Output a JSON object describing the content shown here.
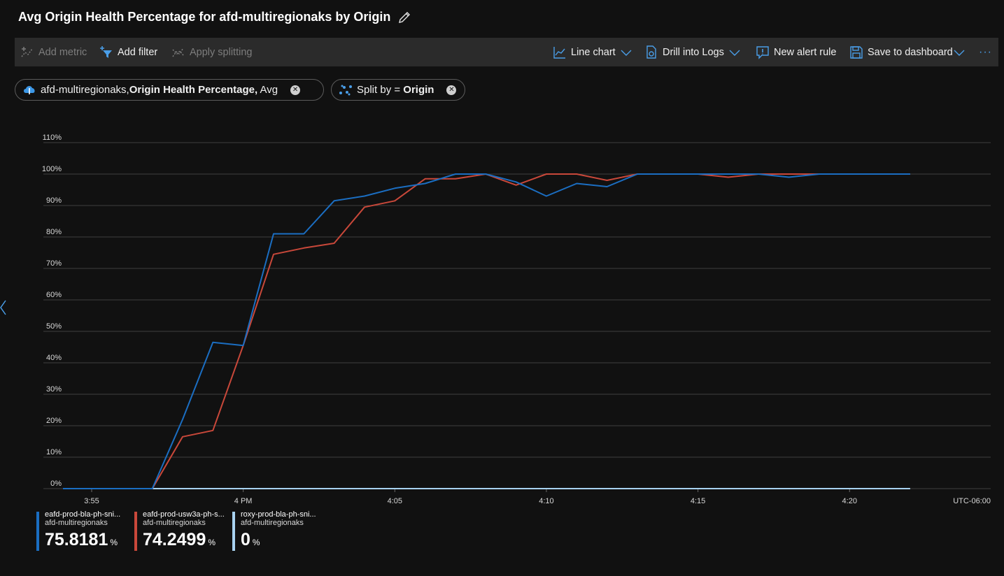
{
  "header": {
    "title": "Avg Origin Health Percentage for afd-multiregionaks by Origin",
    "edit_icon": "pencil-icon"
  },
  "toolbar": {
    "add_metric": "Add metric",
    "add_filter": "Add filter",
    "apply_splitting": "Apply splitting",
    "line_chart": "Line chart",
    "drill_logs": "Drill into Logs",
    "new_alert": "New alert rule",
    "save_dashboard": "Save to dashboard",
    "more": "···"
  },
  "pills": {
    "metric": {
      "resource": "afd-multiregionaks,",
      "metric": "Origin Health Percentage,",
      "agg": "Avg"
    },
    "split": {
      "label": "Split by = ",
      "value": "Origin"
    }
  },
  "colors": {
    "series1": "#1b6ec2",
    "series2": "#c9483a",
    "series3": "#a8d2f0",
    "grid": "#3f3f3f"
  },
  "chart_data": {
    "type": "line",
    "y_ticks": [
      "0%",
      "10%",
      "20%",
      "30%",
      "40%",
      "50%",
      "60%",
      "70%",
      "80%",
      "90%",
      "100%",
      "110%"
    ],
    "ylim": [
      0,
      110
    ],
    "x_ticks": [
      {
        "label": "3:55",
        "t": 0
      },
      {
        "label": "4 PM",
        "t": 5
      },
      {
        "label": "4:05",
        "t": 10
      },
      {
        "label": "4:10",
        "t": 15
      },
      {
        "label": "4:15",
        "t": 20
      },
      {
        "label": "4:20",
        "t": 25
      }
    ],
    "timezone": "UTC-06:00",
    "x": [
      -1,
      0,
      1,
      2,
      3,
      4,
      5,
      6,
      7,
      8,
      9,
      10,
      11,
      12,
      13,
      14,
      15,
      16,
      17,
      18,
      19,
      20,
      21,
      22,
      23,
      24,
      25,
      26,
      27
    ],
    "series": [
      {
        "name": "eafd-prod-bla-ph-sni...",
        "resource": "afd-multiregionaks",
        "value": "75.8181",
        "unit": "%",
        "values": [
          0,
          0,
          0,
          0,
          22,
          46.5,
          45.5,
          81,
          81,
          91.5,
          93,
          95.5,
          97,
          100,
          100,
          97.5,
          93,
          97,
          96,
          100,
          100,
          100,
          100,
          100,
          99,
          100,
          100,
          100,
          100
        ]
      },
      {
        "name": "eafd-prod-usw3a-ph-s...",
        "resource": "afd-multiregionaks",
        "value": "74.2499",
        "unit": "%",
        "values": [
          0,
          0,
          0,
          0,
          16.5,
          18.5,
          45.5,
          74.5,
          76.5,
          78,
          89.5,
          91.5,
          98.5,
          98.5,
          100,
          96.5,
          100,
          100,
          98,
          100,
          100,
          100,
          99,
          100,
          100,
          100,
          100,
          100,
          100
        ]
      },
      {
        "name": "roxy-prod-bla-ph-sni...",
        "resource": "afd-multiregionaks",
        "value": "0",
        "unit": "%",
        "values": [
          0,
          0,
          0,
          0,
          0,
          0,
          0,
          0,
          0,
          0,
          0,
          0,
          0,
          0,
          0,
          0,
          0,
          0,
          0,
          0,
          0,
          0,
          0,
          0,
          0,
          0,
          0,
          0,
          0
        ]
      }
    ],
    "grid": true,
    "legend": "bottom-left"
  }
}
